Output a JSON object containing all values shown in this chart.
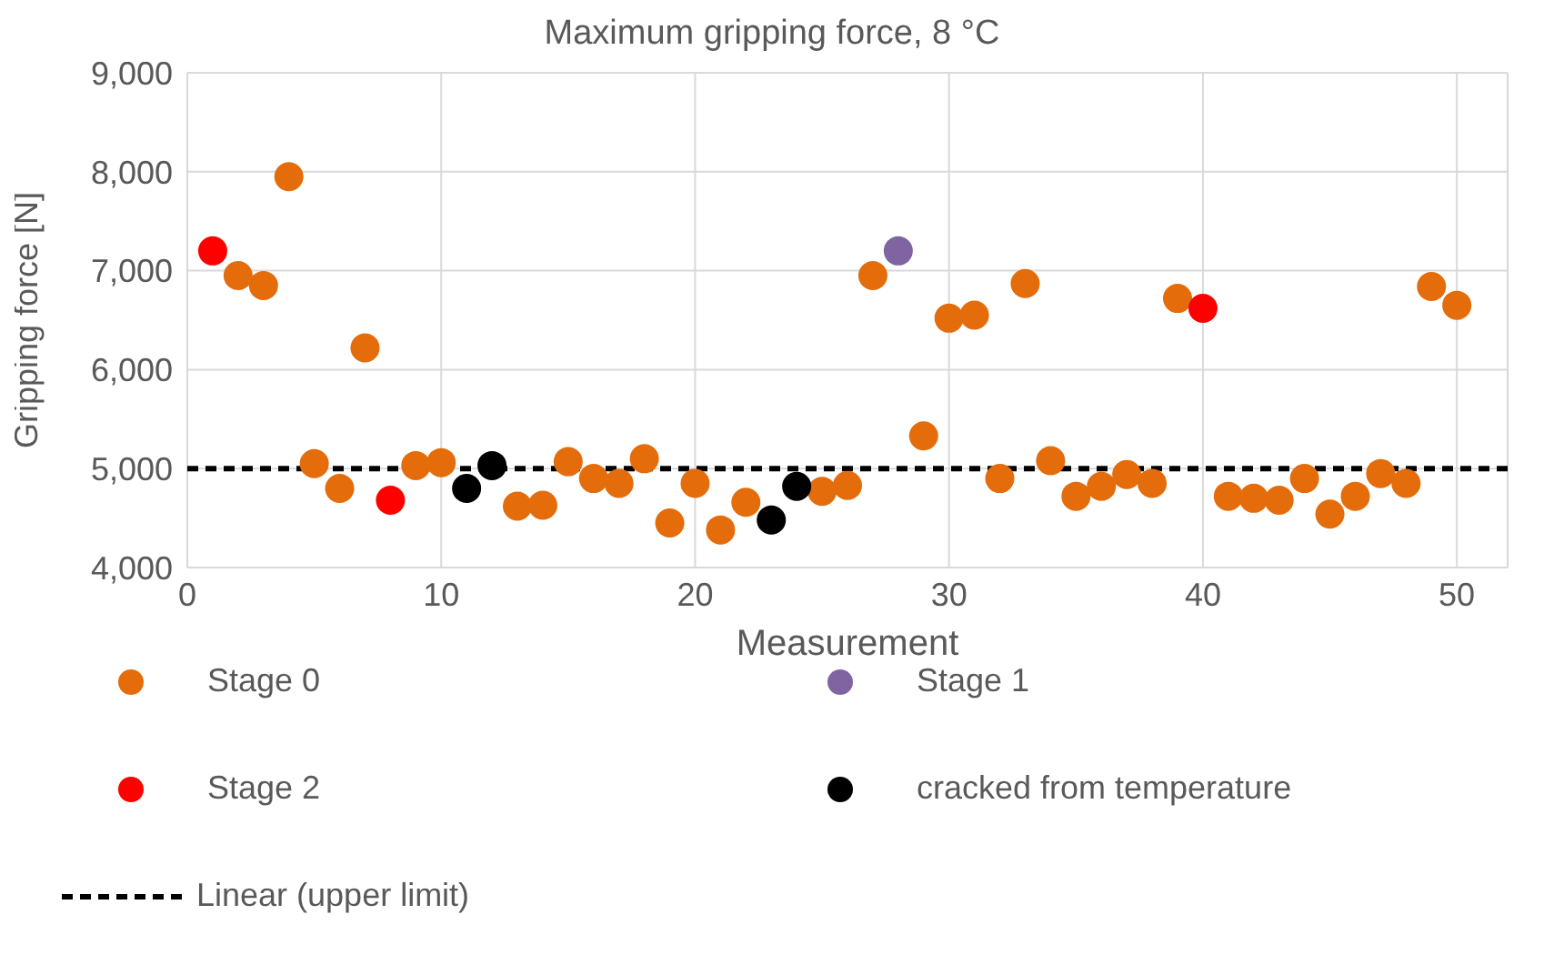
{
  "chart_data": {
    "type": "scatter",
    "title": "Maximum gripping force, 8 °C",
    "xlabel": "Measurement",
    "ylabel": "Gripping force [N]",
    "xlim": [
      0,
      52
    ],
    "xticks": [
      0,
      10,
      20,
      30,
      40,
      50
    ],
    "ylim": [
      4000,
      9000
    ],
    "yticks": [
      {
        "value": 4000,
        "label": "4,000"
      },
      {
        "value": 5000,
        "label": "5,000"
      },
      {
        "value": 6000,
        "label": "6,000"
      },
      {
        "value": 7000,
        "label": "7,000"
      },
      {
        "value": 8000,
        "label": "8,000"
      },
      {
        "value": 9000,
        "label": "9,000"
      }
    ],
    "grid": true,
    "legend": "bottom",
    "marker": "circle",
    "series": [
      {
        "name": "Stage 0",
        "color": "#e46c0a",
        "x": [
          2,
          3,
          4,
          5,
          6,
          7,
          9,
          10,
          13,
          14,
          15,
          16,
          17,
          18,
          19,
          20,
          21,
          22,
          25,
          26,
          27,
          29,
          30,
          31,
          32,
          33,
          34,
          35,
          36,
          37,
          38,
          39,
          41,
          42,
          43,
          44,
          45,
          46,
          47,
          48,
          49,
          50
        ],
        "values": [
          6950,
          6850,
          7950,
          5050,
          4800,
          6220,
          5030,
          5060,
          4620,
          4630,
          5070,
          4900,
          4850,
          5100,
          4450,
          4850,
          4380,
          4660,
          4770,
          4830,
          6950,
          5330,
          6520,
          6550,
          4900,
          6870,
          5080,
          4720,
          4820,
          4940,
          4850,
          6720,
          4720,
          4700,
          4680,
          4900,
          4540,
          4720,
          4950,
          4850,
          6840,
          6650
        ]
      },
      {
        "name": "Stage 1",
        "color": "#8064a2",
        "x": [
          28
        ],
        "values": [
          7200
        ]
      },
      {
        "name": "Stage 2",
        "color": "#ff0000",
        "x": [
          1,
          8,
          40
        ],
        "values": [
          7200,
          4680,
          6620
        ]
      },
      {
        "name": "cracked from temperature",
        "color": "#000000",
        "x": [
          11,
          12,
          23,
          24
        ],
        "values": [
          4800,
          5030,
          4480,
          4820
        ]
      },
      {
        "name": "Linear (upper limit)",
        "type": "line",
        "color": "#000000",
        "line_style": "dashed",
        "marker": "none",
        "x": [
          0,
          52
        ],
        "values": [
          5000,
          5000
        ]
      }
    ]
  }
}
